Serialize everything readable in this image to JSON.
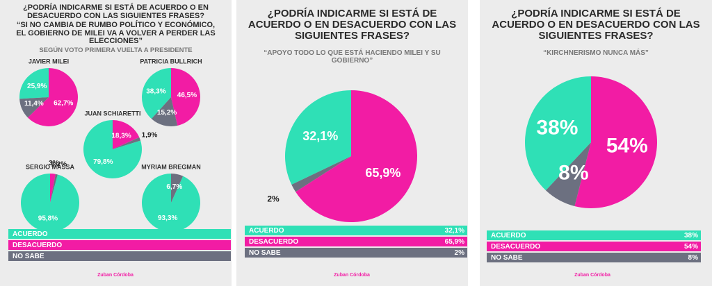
{
  "panels": [
    {
      "title": "¿PODRÍA INDICARME SI ESTÁ DE ACUERDO O EN DESACUERDO CON LAS SIGUIENTES FRASES?",
      "quote": "“SI NO CAMBIA DE RUMBO POLÍTICO Y ECONÓMICO, EL GOBIERNO DE MILEI VA A VOLVER A PERDER LAS ELECCIONES”",
      "subtitle": "SEGÚN VOTO PRIMERA VUELTA A PRESIDENTE"
    },
    {
      "title": "¿PODRÍA INDICARME SI ESTÁ DE ACUERDO O EN DESACUERDO CON LAS SIGUIENTES FRASES?",
      "quote": "“APOYO TODO LO QUE ESTÁ HACIENDO MILEI Y SU GOBIERNO”"
    },
    {
      "title": "¿PODRÍA INDICARME SI ESTÁ DE ACUERDO O EN DESACUERDO CON LAS SIGUIENTES FRASES?",
      "quote": "“KIRCHNERISMO NUNCA MÁS”"
    }
  ],
  "legend": {
    "categories": [
      "ACUERDO",
      "DESACUERDO",
      "NO SABE"
    ],
    "colors": [
      "#2fe0b6",
      "#f21ca4",
      "#6c7080"
    ]
  },
  "brand": "Zuban Córdoba",
  "chart_data": [
    {
      "type": "pie",
      "title": "JAVIER MILEI",
      "categories": [
        "ACUERDO",
        "DESACUERDO",
        "NO SABE"
      ],
      "values": [
        25.9,
        62.7,
        11.4
      ],
      "value_labels": [
        "25,9%",
        "62,7%",
        "11,4%"
      ],
      "colors": [
        "#2fe0b6",
        "#f21ca4",
        "#6c7080"
      ]
    },
    {
      "type": "pie",
      "title": "PATRICIA BULLRICH",
      "categories": [
        "ACUERDO",
        "DESACUERDO",
        "NO SABE"
      ],
      "values": [
        38.3,
        46.5,
        15.2
      ],
      "value_labels": [
        "38,3%",
        "46,5%",
        "15,2%"
      ],
      "colors": [
        "#2fe0b6",
        "#f21ca4",
        "#6c7080"
      ]
    },
    {
      "type": "pie",
      "title": "JUAN SCHIARETTI",
      "categories": [
        "ACUERDO",
        "DESACUERDO",
        "NO SABE"
      ],
      "values": [
        79.8,
        18.3,
        1.9
      ],
      "value_labels": [
        "79,8%",
        "18,3%",
        "1,9%"
      ],
      "colors": [
        "#2fe0b6",
        "#f21ca4",
        "#6c7080"
      ]
    },
    {
      "type": "pie",
      "title": "SERGIO MASSA",
      "categories": [
        "ACUERDO",
        "DESACUERDO",
        "NO SABE"
      ],
      "values": [
        95.8,
        3,
        1.2
      ],
      "value_labels": [
        "95,8%",
        "3%",
        "1,2%"
      ],
      "colors": [
        "#2fe0b6",
        "#f21ca4",
        "#6c7080"
      ]
    },
    {
      "type": "pie",
      "title": "MYRIAM BREGMAN",
      "categories": [
        "ACUERDO",
        "DESACUERDO",
        "NO SABE"
      ],
      "values": [
        93.3,
        0,
        6.7
      ],
      "value_labels": [
        "93,3%",
        null,
        "6,7%"
      ],
      "colors": [
        "#2fe0b6",
        "#f21ca4",
        "#6c7080"
      ]
    },
    {
      "type": "pie",
      "categories": [
        "ACUERDO",
        "DESACUERDO",
        "NO SABE"
      ],
      "values": [
        32.1,
        65.9,
        2
      ],
      "value_labels": [
        "32,1%",
        "65,9%",
        "2%"
      ],
      "colors": [
        "#2fe0b6",
        "#f21ca4",
        "#6c7080"
      ]
    },
    {
      "type": "pie",
      "categories": [
        "ACUERDO",
        "DESACUERDO",
        "NO SABE"
      ],
      "values": [
        38,
        54,
        8
      ],
      "value_labels": [
        "38%",
        "54%",
        "8%"
      ],
      "colors": [
        "#2fe0b6",
        "#f21ca4",
        "#6c7080"
      ]
    }
  ]
}
